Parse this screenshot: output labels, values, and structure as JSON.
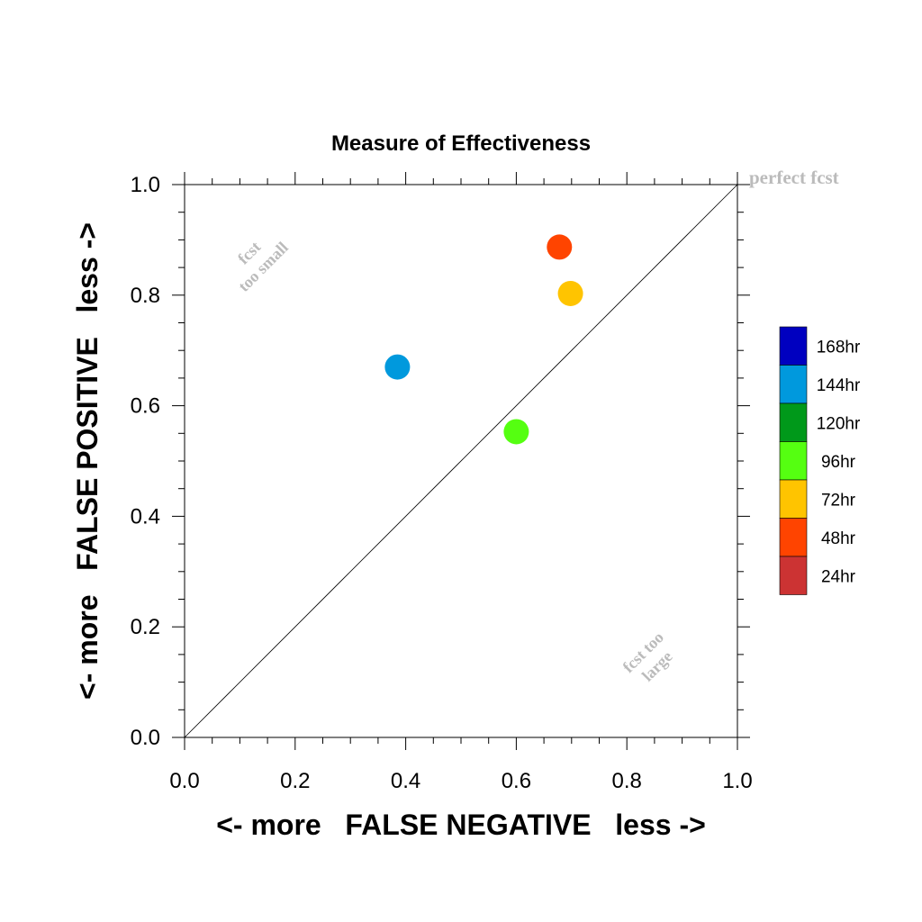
{
  "chart_data": {
    "type": "scatter",
    "title": "Measure of Effectiveness",
    "xlabel": "<- more   FALSE NEGATIVE   less ->",
    "ylabel": "<- more   FALSE POSITIVE   less ->",
    "xlim": [
      0.0,
      1.0
    ],
    "ylim": [
      0.0,
      1.0
    ],
    "x_ticks": [
      "0.0",
      "0.2",
      "0.4",
      "0.6",
      "0.8",
      "1.0"
    ],
    "y_ticks": [
      "0.0",
      "0.2",
      "0.4",
      "0.6",
      "0.8",
      "1.0"
    ],
    "grid": false,
    "diagonal_line": true,
    "annotations": {
      "perfect": "perfect fcst",
      "small_line1": "fcst",
      "small_line2": "too small",
      "large_line1": "fcst too",
      "large_line2": "large"
    },
    "legend": {
      "placement": "right",
      "entries": [
        {
          "label": "168hr",
          "color": "#0000c0"
        },
        {
          "label": "144hr",
          "color": "#0099dd"
        },
        {
          "label": "120hr",
          "color": "#00991a"
        },
        {
          "label": "96hr",
          "color": "#55ff11"
        },
        {
          "label": "72hr",
          "color": "#ffc400"
        },
        {
          "label": "48hr",
          "color": "#ff4400"
        },
        {
          "label": "24hr",
          "color": "#cc3333"
        }
      ]
    },
    "points": [
      {
        "series": "144hr",
        "x": 0.385,
        "y": 0.67,
        "color": "#0099dd"
      },
      {
        "series": "96hr",
        "x": 0.6,
        "y": 0.553,
        "color": "#55ff11"
      },
      {
        "series": "72hr",
        "x": 0.698,
        "y": 0.803,
        "color": "#ffc400"
      },
      {
        "series": "48hr",
        "x": 0.678,
        "y": 0.887,
        "color": "#ff4400"
      }
    ]
  }
}
